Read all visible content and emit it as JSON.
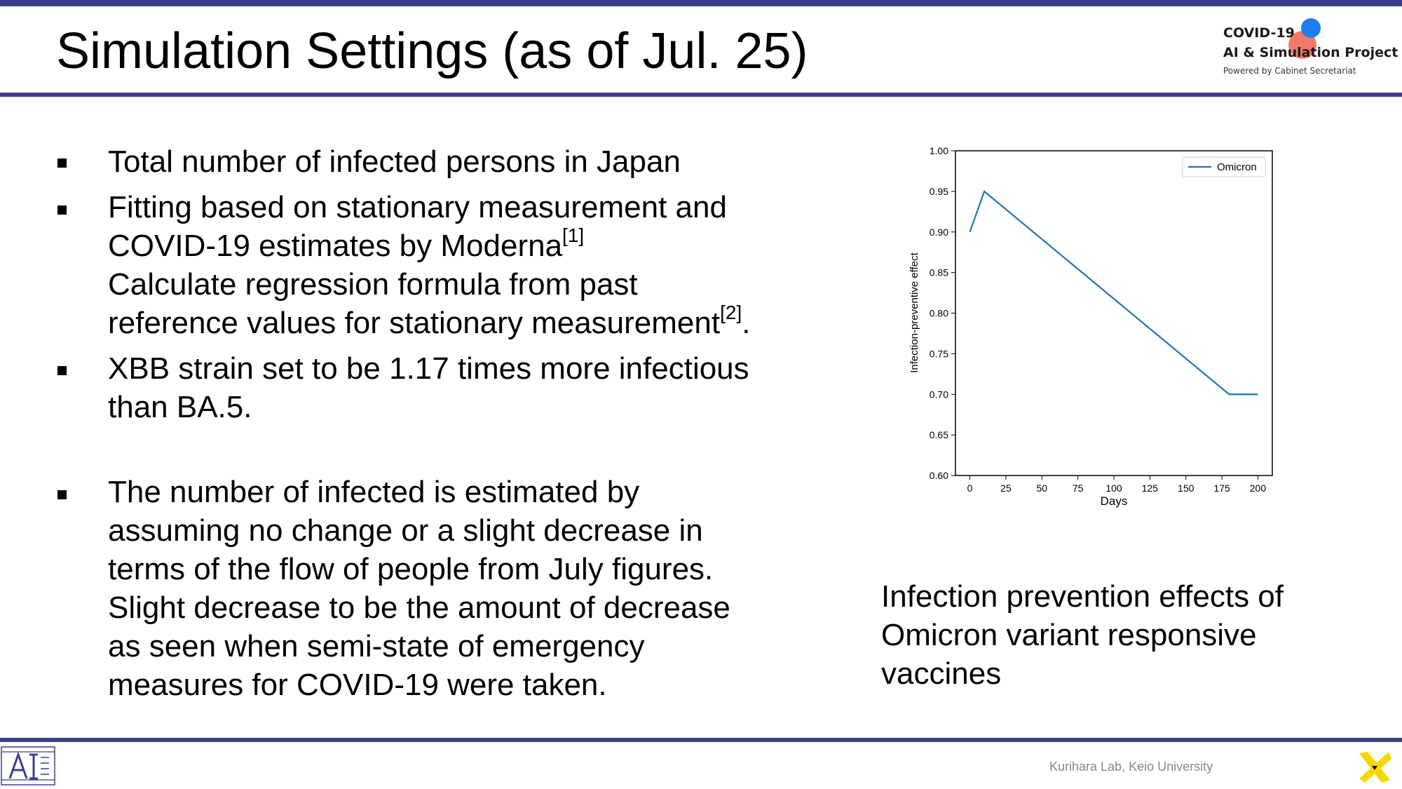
{
  "slide": {
    "title": "Simulation Settings (as of Jul. 25)"
  },
  "logo": {
    "line1": "COVID-19",
    "line2": "AI & Simulation Project",
    "line3": "Powered by Cabinet Secretariat",
    "colors": {
      "red": "#f0705a",
      "blue": "#1e7ef0"
    }
  },
  "bullets": [
    {
      "lines": [
        {
          "text": "Total number of infected persons in Japan"
        }
      ]
    },
    {
      "lines": [
        {
          "text": "Fitting based on stationary measurement and"
        },
        {
          "text": "COVID-19 estimates by Moderna",
          "sup": "[1]"
        },
        {
          "text": "Calculate regression formula from past"
        },
        {
          "text": "reference values for stationary measurement",
          "sup": "[2]",
          "after": "."
        }
      ]
    },
    {
      "lines": [
        {
          "text": "XBB strain set to be 1.17 times more infectious"
        },
        {
          "text": "than BA.5."
        }
      ]
    },
    {
      "lines": [
        {
          "text": "The number of infected is estimated by"
        },
        {
          "text": "assuming no change or a slight decrease in"
        },
        {
          "text": "terms of the flow of people from July figures."
        },
        {
          "text": "Slight decrease to be the amount of decrease"
        },
        {
          "text": "as seen when semi-state of emergency"
        },
        {
          "text": "measures for COVID-19 were taken."
        }
      ]
    }
  ],
  "caption": {
    "line1": "Infection prevention effects of",
    "line2": "Omicron variant responsive",
    "line3": "vaccines"
  },
  "chart_data": {
    "type": "line",
    "xlabel": "Days",
    "ylabel": "Infection-preventive effect",
    "xlim": [
      -10,
      210
    ],
    "ylim": [
      0.6,
      1.0
    ],
    "xticks": [
      0,
      25,
      50,
      75,
      100,
      125,
      150,
      175,
      200
    ],
    "yticks": [
      "0.60",
      "0.65",
      "0.70",
      "0.75",
      "0.80",
      "0.85",
      "0.90",
      "0.95",
      "1.00"
    ],
    "legend": "top-right",
    "grid": false,
    "series": [
      {
        "name": "Omicron",
        "color": "#1f77b4",
        "x": [
          0,
          10,
          180,
          200
        ],
        "y": [
          0.9,
          0.95,
          0.7,
          0.7
        ]
      }
    ]
  },
  "footer": {
    "credit": "Kurihara Lab, Keio University",
    "colors": {
      "rule": "#3c3f8a",
      "x_logo": "#f5d800"
    }
  }
}
